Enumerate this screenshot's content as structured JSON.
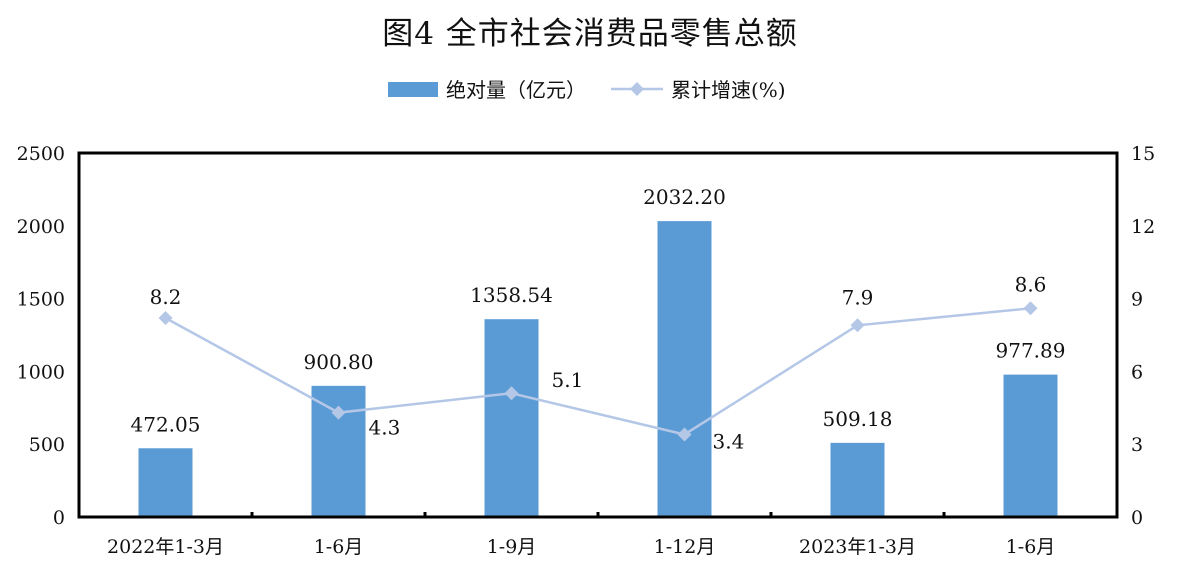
{
  "chart_data": {
    "type": "bar+line",
    "title": "图4  全市社会消费品零售总额",
    "categories": [
      "2022年1-3月",
      "1-6月",
      "1-9月",
      "1-12月",
      "2023年1-3月",
      "1-6月"
    ],
    "series": [
      {
        "name": "绝对量（亿元）",
        "type": "bar",
        "axis": "left",
        "values": [
          472.05,
          900.8,
          1358.54,
          2032.2,
          509.18,
          977.89
        ],
        "labels": [
          "472.05",
          "900.80",
          "1358.54",
          "2032.20",
          "509.18",
          "977.89"
        ],
        "color": "#5B9BD5"
      },
      {
        "name": "累计增速(%)",
        "type": "line",
        "axis": "right",
        "values": [
          8.2,
          4.3,
          5.1,
          3.4,
          7.9,
          8.6
        ],
        "labels": [
          "8.2",
          "4.3",
          "5.1",
          "3.4",
          "7.9",
          "8.6"
        ],
        "color": "#B4C7E7"
      }
    ],
    "y_left": {
      "range": [
        0,
        2500
      ],
      "ticks": [
        "0",
        "500",
        "1000",
        "1500",
        "2000",
        "2500"
      ]
    },
    "y_right": {
      "range": [
        0,
        15
      ],
      "ticks": [
        "0",
        "3",
        "6",
        "9",
        "12",
        "15"
      ]
    },
    "legend": "top-center",
    "grid": false
  }
}
